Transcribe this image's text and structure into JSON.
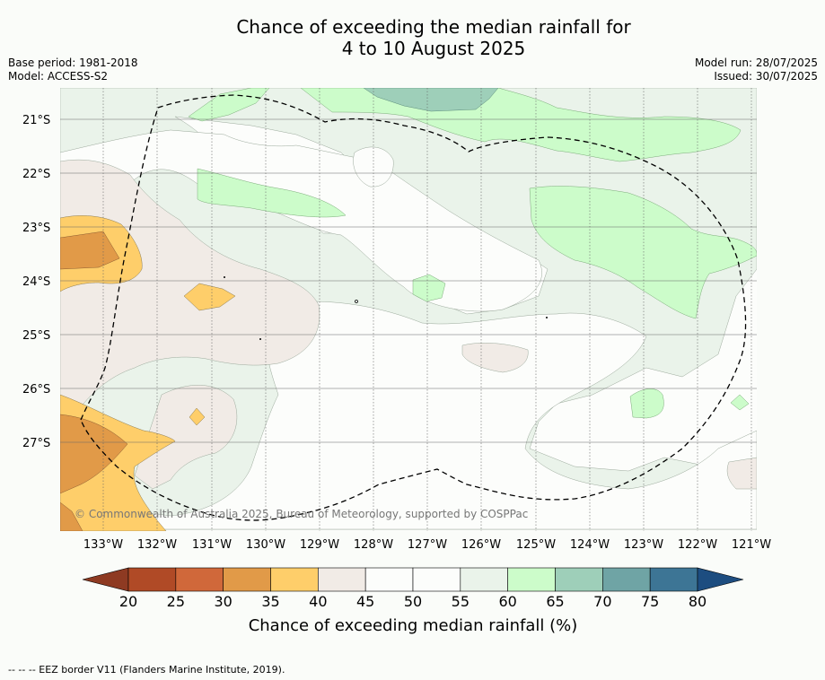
{
  "title_line1": "Chance of exceeding the median rainfall for",
  "title_line2": "4 to 10 August 2025",
  "base_period": "Base period: 1981-2018",
  "model": "Model: ACCESS-S2",
  "model_run": "Model run: 28/07/2025",
  "issued": "Issued: 30/07/2025",
  "copyright": "© Commonwealth of Australia 2025, Bureau of Meteorology, supported by COSPPac",
  "footnote": "-- -- -- EEZ border V11 (Flanders Marine Institute, 2019).",
  "lat_labels": [
    "21°S",
    "22°S",
    "23°S",
    "24°S",
    "25°S",
    "26°S",
    "27°S"
  ],
  "lon_labels": [
    "133°W",
    "132°W",
    "131°W",
    "130°W",
    "129°W",
    "128°W",
    "127°W",
    "126°W",
    "125°W",
    "124°W",
    "123°W",
    "122°W",
    "121°W"
  ],
  "colorbar": {
    "label": "Chance of exceeding median rainfall (%)",
    "ticks": [
      "20",
      "25",
      "30",
      "35",
      "40",
      "45",
      "50",
      "55",
      "60",
      "65",
      "70",
      "75",
      "80"
    ],
    "colors": [
      "#8e3a22",
      "#b04a26",
      "#d0683a",
      "#e19a48",
      "#fece6a",
      "#f1ebe6",
      "#fcfdfb",
      "#fcfdfb",
      "#eaf3ea",
      "#ccfcca",
      "#9ecfb9",
      "#6fa4a5",
      "#3d7595",
      "#1d4d80"
    ]
  }
}
